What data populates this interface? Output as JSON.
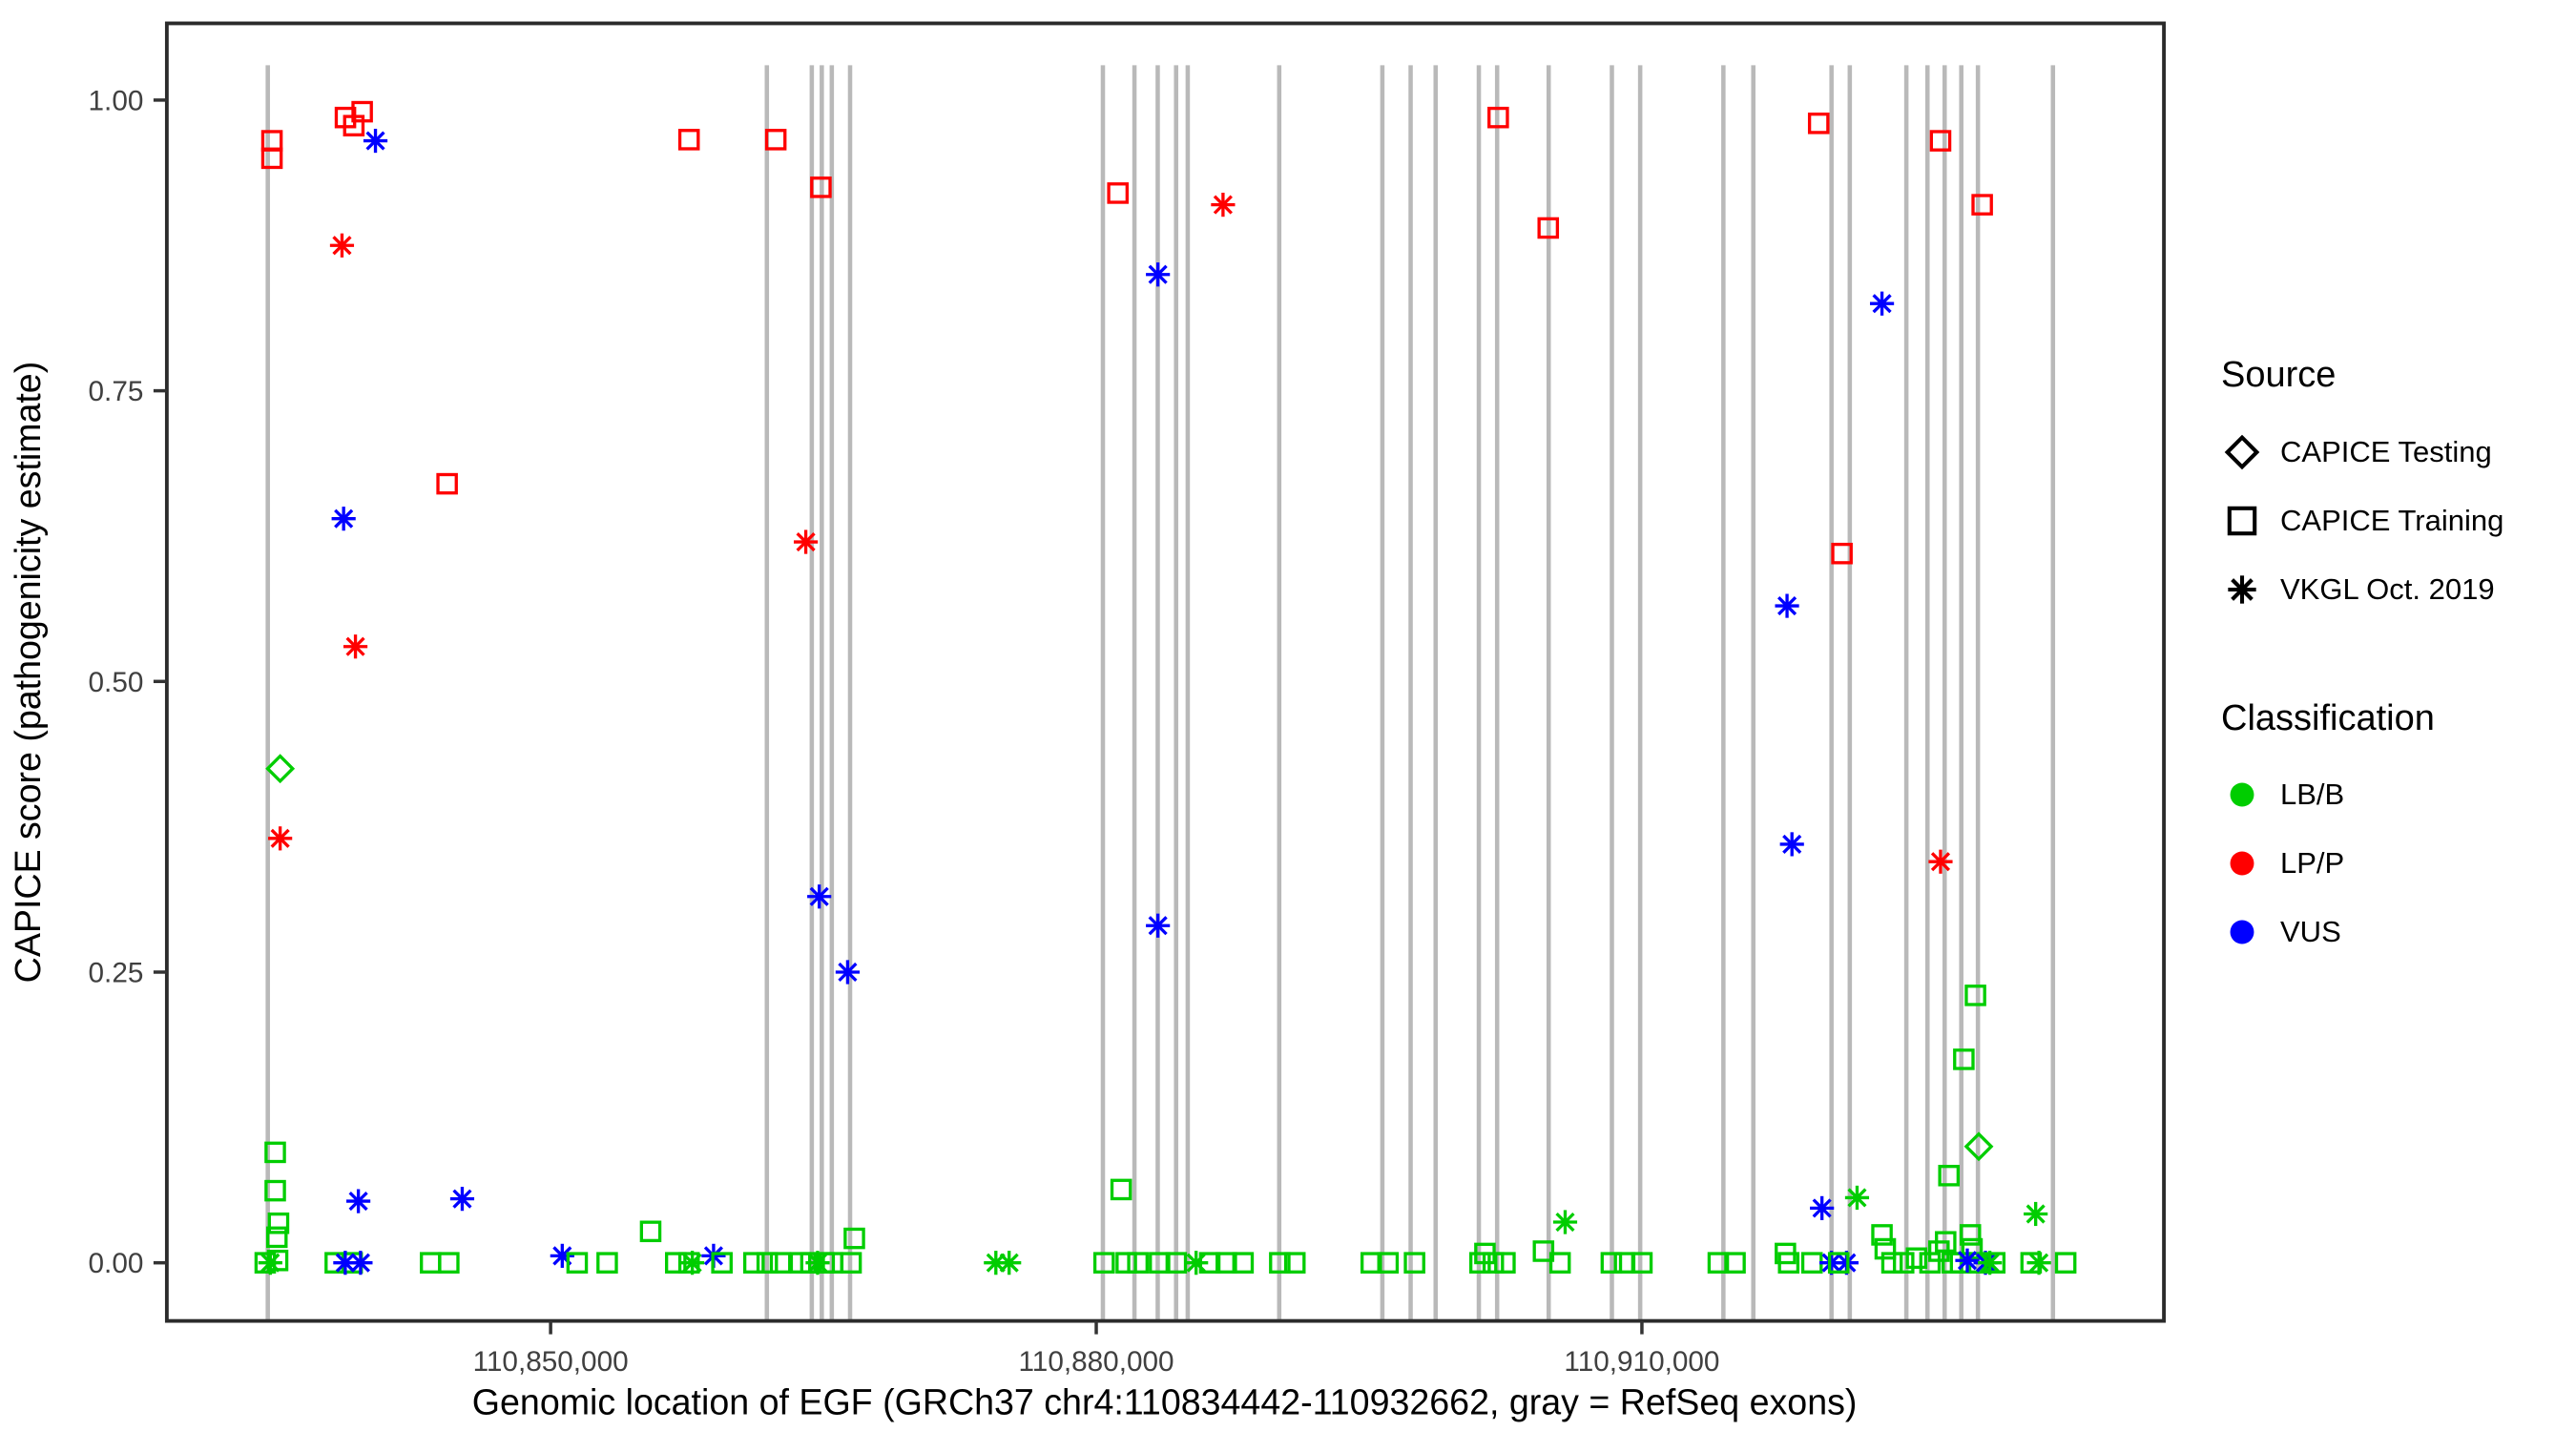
{
  "chart_data": {
    "type": "scatter",
    "xlabel": "Genomic location of EGF (GRCh37 chr4:110834442-110932662, gray = RefSeq exons)",
    "ylabel": "CAPICE score (pathogenicity estimate)",
    "xlim": [
      110828900,
      110938700
    ],
    "ylim": [
      -0.05,
      1.066
    ],
    "grid": false,
    "legend_position": "right",
    "x_ticks": [
      {
        "value": 110850000,
        "label": "110,850,000"
      },
      {
        "value": 110880000,
        "label": "110,880,000"
      },
      {
        "value": 110910000,
        "label": "110,910,000"
      }
    ],
    "y_ticks": [
      {
        "value": 0.0,
        "label": "0.00"
      },
      {
        "value": 0.25,
        "label": "0.25"
      },
      {
        "value": 0.5,
        "label": "0.50"
      },
      {
        "value": 0.75,
        "label": "0.75"
      },
      {
        "value": 1.0,
        "label": "1.00"
      }
    ],
    "exon_color": "#B9B9B9",
    "exon_lines": [
      110834450,
      110861890,
      110864360,
      110864910,
      110865460,
      110866465,
      110880365,
      110882100,
      110883380,
      110884390,
      110885030,
      110890060,
      110895730,
      110897285,
      110898660,
      110901035,
      110902040,
      110904875,
      110908350,
      110909905,
      110914480,
      110916125,
      110920425,
      110921430,
      110924540,
      110925700,
      110926645,
      110927560,
      110928475,
      110932600
    ],
    "colors": {
      "LBB": "#00CD00",
      "LPP": "#FF0000",
      "VUS": "#0000FF"
    },
    "shapes": {
      "test": "diamond",
      "train": "square",
      "vkgl": "asterisk"
    },
    "points": [
      [
        110834680,
        0.965,
        "train",
        "LPP"
      ],
      [
        110834680,
        0.95,
        "train",
        "LPP"
      ],
      [
        110838720,
        0.985,
        "train",
        "LPP"
      ],
      [
        110839180,
        0.978,
        "train",
        "LPP"
      ],
      [
        110839640,
        0.99,
        "train",
        "LPP"
      ],
      [
        110840370,
        0.965,
        "vkgl",
        "VUS"
      ],
      [
        110838530,
        0.875,
        "vkgl",
        "LPP"
      ],
      [
        110844310,
        0.67,
        "train",
        "LPP"
      ],
      [
        110838620,
        0.64,
        "vkgl",
        "VUS"
      ],
      [
        110839270,
        0.53,
        "vkgl",
        "LPP"
      ],
      [
        110835130,
        0.425,
        "test",
        "LBB"
      ],
      [
        110835130,
        0.365,
        "vkgl",
        "LPP"
      ],
      [
        110834860,
        0.095,
        "train",
        "LBB"
      ],
      [
        110834860,
        0.062,
        "train",
        "LBB"
      ],
      [
        110835040,
        0.034,
        "train",
        "LBB"
      ],
      [
        110834950,
        0.022,
        "train",
        "LBB"
      ],
      [
        110834310,
        0.0,
        "train",
        "LBB"
      ],
      [
        110834590,
        0.0,
        "vkgl",
        "LBB"
      ],
      [
        110834990,
        0.002,
        "train",
        "LBB"
      ],
      [
        110838160,
        0.0,
        "train",
        "LBB"
      ],
      [
        110839090,
        0.0,
        "train",
        "LBB"
      ],
      [
        110838710,
        0.0,
        "vkgl",
        "VUS"
      ],
      [
        110839550,
        0.0,
        "vkgl",
        "VUS"
      ],
      [
        110839430,
        0.053,
        "vkgl",
        "VUS"
      ],
      [
        110843400,
        0.0,
        "train",
        "LBB"
      ],
      [
        110844400,
        0.0,
        "train",
        "LBB"
      ],
      [
        110845140,
        0.055,
        "vkgl",
        "VUS"
      ],
      [
        110850640,
        0.006,
        "vkgl",
        "VUS"
      ],
      [
        110851460,
        0.0,
        "train",
        "LBB"
      ],
      [
        110853110,
        0.0,
        "train",
        "LBB"
      ],
      [
        110855500,
        0.027,
        "train",
        "LBB"
      ],
      [
        110856880,
        0.0,
        "train",
        "LBB"
      ],
      [
        110857610,
        0.0,
        "train",
        "LBB"
      ],
      [
        110857790,
        0.0,
        "vkgl",
        "LBB"
      ],
      [
        110858960,
        0.006,
        "vkgl",
        "VUS"
      ],
      [
        110859420,
        0.0,
        "train",
        "LBB"
      ],
      [
        110857610,
        0.966,
        "train",
        "LPP"
      ],
      [
        110862380,
        0.966,
        "train",
        "LPP"
      ],
      [
        110864860,
        0.925,
        "train",
        "LPP"
      ],
      [
        110864030,
        0.62,
        "vkgl",
        "LPP"
      ],
      [
        110864770,
        0.315,
        "vkgl",
        "VUS"
      ],
      [
        110866330,
        0.25,
        "vkgl",
        "VUS"
      ],
      [
        110861180,
        0.0,
        "train",
        "LBB"
      ],
      [
        110861910,
        0.0,
        "train",
        "LBB"
      ],
      [
        110862640,
        0.0,
        "train",
        "LBB"
      ],
      [
        110863740,
        0.0,
        "train",
        "LBB"
      ],
      [
        110864310,
        0.0,
        "train",
        "LBB"
      ],
      [
        110864680,
        0.0,
        "vkgl",
        "LBB"
      ],
      [
        110865040,
        0.0,
        "train",
        "LBB"
      ],
      [
        110865500,
        0.0,
        "train",
        "LBB"
      ],
      [
        110866520,
        0.0,
        "train",
        "LBB"
      ],
      [
        110866700,
        0.021,
        "train",
        "LBB"
      ],
      [
        110874480,
        0.0,
        "vkgl",
        "LBB"
      ],
      [
        110875210,
        0.0,
        "vkgl",
        "LBB"
      ],
      [
        110881190,
        0.92,
        "train",
        "LPP"
      ],
      [
        110883390,
        0.85,
        "vkgl",
        "VUS"
      ],
      [
        110886970,
        0.91,
        "vkgl",
        "LPP"
      ],
      [
        110883390,
        0.29,
        "vkgl",
        "VUS"
      ],
      [
        110881370,
        0.063,
        "train",
        "LBB"
      ],
      [
        110880430,
        0.0,
        "train",
        "LBB"
      ],
      [
        110881650,
        0.0,
        "train",
        "LBB"
      ],
      [
        110882290,
        0.0,
        "train",
        "LBB"
      ],
      [
        110883480,
        0.0,
        "train",
        "LBB"
      ],
      [
        110884400,
        0.0,
        "train",
        "LBB"
      ],
      [
        110885490,
        0.0,
        "vkgl",
        "LBB"
      ],
      [
        110886240,
        0.0,
        "train",
        "LBB"
      ],
      [
        110887150,
        0.0,
        "train",
        "LBB"
      ],
      [
        110888070,
        0.0,
        "train",
        "LBB"
      ],
      [
        110890090,
        0.0,
        "train",
        "LBB"
      ],
      [
        110890920,
        0.0,
        "train",
        "LBB"
      ],
      [
        110895120,
        0.0,
        "train",
        "LBB"
      ],
      [
        110896040,
        0.0,
        "train",
        "LBB"
      ],
      [
        110897500,
        0.0,
        "train",
        "LBB"
      ],
      [
        110902100,
        0.985,
        "train",
        "LPP"
      ],
      [
        110904850,
        0.89,
        "train",
        "LPP"
      ],
      [
        110905780,
        0.035,
        "vkgl",
        "LBB"
      ],
      [
        110901370,
        0.008,
        "train",
        "LBB"
      ],
      [
        110901100,
        0.0,
        "train",
        "LBB"
      ],
      [
        110901830,
        0.0,
        "train",
        "LBB"
      ],
      [
        110902470,
        0.0,
        "train",
        "LBB"
      ],
      [
        110904590,
        0.01,
        "train",
        "LBB"
      ],
      [
        110905500,
        0.0,
        "train",
        "LBB"
      ],
      [
        110908320,
        0.0,
        "train",
        "LBB"
      ],
      [
        110909050,
        0.0,
        "train",
        "LBB"
      ],
      [
        110910000,
        0.0,
        "train",
        "LBB"
      ],
      [
        110914200,
        0.0,
        "train",
        "LBB"
      ],
      [
        110915120,
        0.0,
        "train",
        "LBB"
      ],
      [
        110917890,
        0.008,
        "train",
        "LBB"
      ],
      [
        110918070,
        0.0,
        "train",
        "LBB"
      ],
      [
        110919350,
        0.0,
        "train",
        "LBB"
      ],
      [
        110919720,
        0.98,
        "train",
        "LPP"
      ],
      [
        110921000,
        0.61,
        "train",
        "LPP"
      ],
      [
        110917980,
        0.565,
        "vkgl",
        "VUS"
      ],
      [
        110918250,
        0.36,
        "vkgl",
        "VUS"
      ],
      [
        110923200,
        0.825,
        "vkgl",
        "VUS"
      ],
      [
        110919900,
        0.047,
        "vkgl",
        "VUS"
      ],
      [
        110921830,
        0.056,
        "vkgl",
        "LBB"
      ],
      [
        110920420,
        0.0,
        "vkgl",
        "VUS"
      ],
      [
        110921250,
        0.0,
        "vkgl",
        "VUS"
      ],
      [
        110920820,
        0.0,
        "train",
        "LBB"
      ],
      [
        110923200,
        0.024,
        "train",
        "LBB"
      ],
      [
        110923380,
        0.012,
        "train",
        "LBB"
      ],
      [
        110923750,
        0.0,
        "train",
        "LBB"
      ],
      [
        110924390,
        0.0,
        "train",
        "LBB"
      ],
      [
        110925100,
        0.004,
        "train",
        "LBB"
      ],
      [
        110925840,
        0.0,
        "train",
        "LBB"
      ],
      [
        110926420,
        0.965,
        "train",
        "LPP"
      ],
      [
        110926420,
        0.345,
        "vkgl",
        "LPP"
      ],
      [
        110928710,
        0.91,
        "train",
        "LPP"
      ],
      [
        110928340,
        0.23,
        "train",
        "LBB"
      ],
      [
        110927700,
        0.175,
        "train",
        "LBB"
      ],
      [
        110928520,
        0.1,
        "test",
        "LBB"
      ],
      [
        110926880,
        0.075,
        "train",
        "LBB"
      ],
      [
        110926330,
        0.01,
        "train",
        "LBB"
      ],
      [
        110926700,
        0.018,
        "train",
        "LBB"
      ],
      [
        110927070,
        0.0,
        "train",
        "LBB"
      ],
      [
        110927520,
        0.0,
        "train",
        "LBB"
      ],
      [
        110928060,
        0.024,
        "train",
        "LBB"
      ],
      [
        110928150,
        0.012,
        "train",
        "LBB"
      ],
      [
        110928490,
        0.0,
        "train",
        "LBB"
      ],
      [
        110927890,
        0.002,
        "vkgl",
        "VUS"
      ],
      [
        110928890,
        0.0,
        "vkgl",
        "VUS"
      ],
      [
        110929130,
        0.0,
        "vkgl",
        "LBB"
      ],
      [
        110929400,
        0.0,
        "train",
        "LBB"
      ],
      [
        110931650,
        0.042,
        "vkgl",
        "LBB"
      ],
      [
        110931400,
        0.0,
        "train",
        "LBB"
      ],
      [
        110931830,
        0.0,
        "vkgl",
        "LBB"
      ],
      [
        110933300,
        0.0,
        "train",
        "LBB"
      ]
    ],
    "legend": {
      "source": {
        "title": "Source",
        "items": [
          {
            "label": "CAPICE Testing",
            "shape": "diamond",
            "color": "#000000"
          },
          {
            "label": "CAPICE Training",
            "shape": "square",
            "color": "#000000"
          },
          {
            "label": "VKGL Oct. 2019",
            "shape": "asterisk",
            "color": "#000000"
          }
        ]
      },
      "classification": {
        "title": "Classification",
        "items": [
          {
            "label": "LB/B",
            "shape": "circle",
            "color": "#00CD00"
          },
          {
            "label": "LP/P",
            "shape": "circle",
            "color": "#FF0000"
          },
          {
            "label": "VUS",
            "shape": "circle",
            "color": "#0000FF"
          }
        ]
      }
    }
  }
}
